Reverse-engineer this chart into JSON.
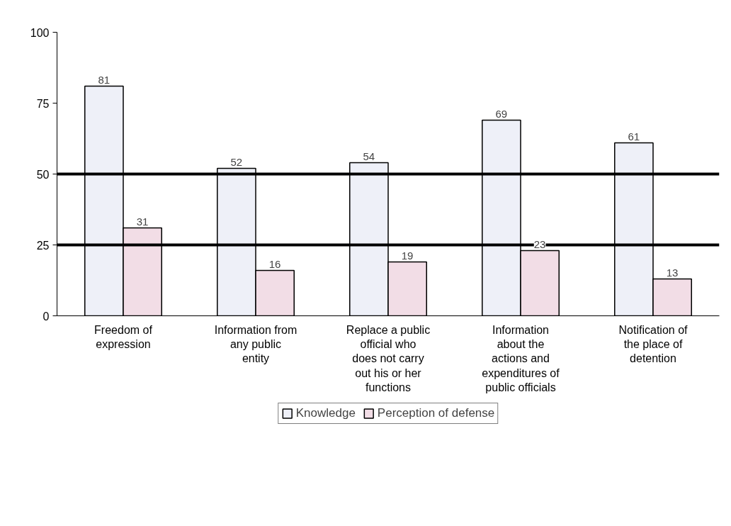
{
  "chart_data": {
    "type": "bar",
    "categories": [
      "Freedom of expression",
      "Information from any public entity",
      "Replace a public official who does not carry out his or her functions",
      "Information about the actions and expenditures of public officials",
      "Notification of the place of detention"
    ],
    "series": [
      {
        "name": "Knowledge",
        "color": "#eef0f8",
        "values": [
          81,
          52,
          54,
          69,
          61
        ]
      },
      {
        "name": "Perception of defense",
        "color": "#f2dde6",
        "values": [
          31,
          16,
          19,
          23,
          13
        ]
      }
    ],
    "ylim": [
      0,
      100
    ],
    "yticks": [
      0,
      25,
      50,
      75,
      100
    ],
    "grid": false,
    "data_labels": true,
    "legend": "bottom",
    "ref_lines": [
      {
        "axis": "y",
        "value": 50,
        "color": "#000000"
      },
      {
        "axis": "y",
        "value": 25,
        "color": "#000000"
      }
    ]
  }
}
